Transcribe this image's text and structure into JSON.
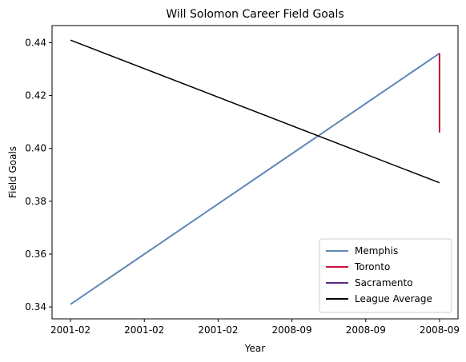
{
  "chart_data": {
    "type": "line",
    "title": "Will Solomon Career Field Goals",
    "xlabel": "Year",
    "ylabel": "Field Goals",
    "x_tick_labels": [
      "2001-02",
      "2001-02",
      "2001-02",
      "2008-09",
      "2008-09",
      "2008-09"
    ],
    "x": [
      0,
      1
    ],
    "xlim": [
      -0.05,
      1.05
    ],
    "ylim": [
      0.3355,
      0.4465
    ],
    "y_ticks": [
      0.34,
      0.36,
      0.38,
      0.4,
      0.42,
      0.44
    ],
    "y_tick_labels": [
      "0.34",
      "0.36",
      "0.38",
      "0.40",
      "0.42",
      "0.44"
    ],
    "grid": false,
    "legend_position": "lower-right",
    "series": [
      {
        "name": "Memphis",
        "color": "#5d88b6",
        "points": [
          [
            0,
            0.341
          ],
          [
            1,
            0.436
          ]
        ]
      },
      {
        "name": "Toronto",
        "color": "#c8113a",
        "points": [
          [
            1,
            0.436
          ],
          [
            1,
            0.406
          ]
        ]
      },
      {
        "name": "Sacramento",
        "color": "#5b2b82",
        "points": []
      },
      {
        "name": "League Average",
        "color": "#000000",
        "points": [
          [
            0,
            0.441
          ],
          [
            1,
            0.387
          ]
        ]
      }
    ]
  }
}
